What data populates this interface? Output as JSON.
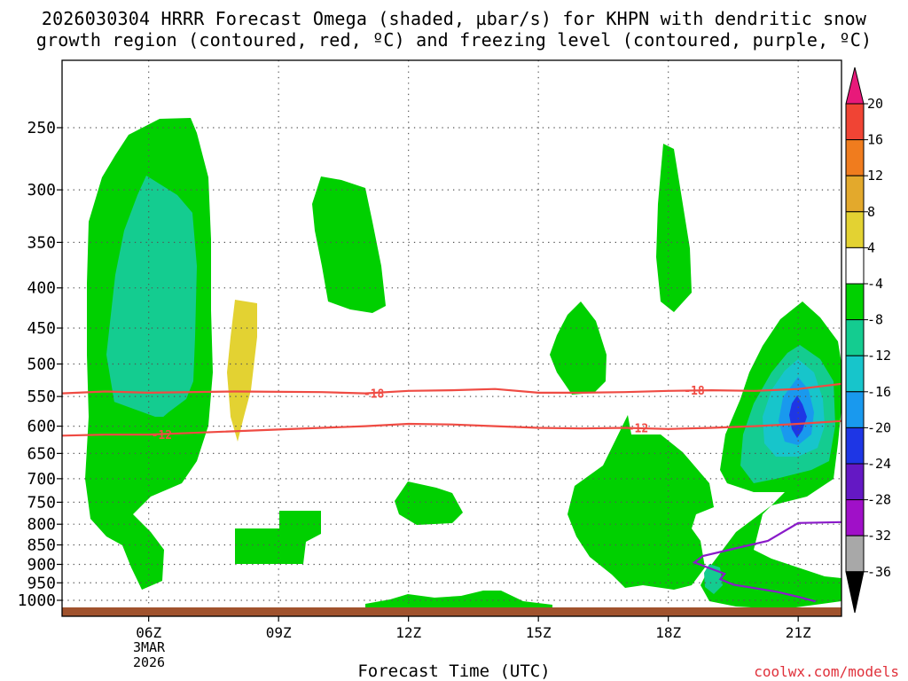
{
  "title_line1": "2026030304 HRRR Forecast Omega (shaded, µbar/s) for KHPN with dendritic snow",
  "title_line2": "growth region (contoured, red, ºC) and freezing level (contoured, purple, ºC)",
  "credit": "coolwx.com/models",
  "chart_data": {
    "type": "contour-time-height",
    "xlabel": "Forecast Time (UTC)",
    "x_ticks": [
      {
        "hour": 6,
        "label": "06Z",
        "sub1": "3MAR",
        "sub2": "2026"
      },
      {
        "hour": 9,
        "label": "09Z"
      },
      {
        "hour": 12,
        "label": "12Z"
      },
      {
        "hour": 15,
        "label": "15Z"
      },
      {
        "hour": 18,
        "label": "18Z"
      },
      {
        "hour": 21,
        "label": "21Z"
      }
    ],
    "x_range_hours": [
      4.0,
      22.0
    ],
    "y_axis_pressure_hPa": [
      250,
      300,
      350,
      400,
      450,
      500,
      550,
      600,
      650,
      700,
      750,
      800,
      850,
      900,
      950,
      1000
    ],
    "y_scale": "log-pressure (inverted)",
    "colorbar": {
      "levels": [
        20,
        16,
        12,
        8,
        4,
        -4,
        -8,
        -12,
        -16,
        -20,
        -24,
        -28,
        -32,
        -36
      ],
      "colors": [
        "#e8197a",
        "#f04434",
        "#f07c1e",
        "#e3a92c",
        "#e3d232",
        "#ffffff",
        "#00d000",
        "#14cc90",
        "#17c5cb",
        "#1999ee",
        "#1e36e5",
        "#6418c4",
        "#a010c8",
        "#a8a8a8",
        "#000000"
      ]
    },
    "contours": [
      {
        "kind": "dendritic growth",
        "color": "#ef4b43",
        "value": -18,
        "label": "-18",
        "points": [
          [
            4.0,
            545
          ],
          [
            5.0,
            542
          ],
          [
            6.0,
            544
          ],
          [
            8.0,
            542
          ],
          [
            10.0,
            543
          ],
          [
            11.0,
            545
          ],
          [
            12.0,
            541
          ],
          [
            13.0,
            540
          ],
          [
            14.0,
            538
          ],
          [
            15.0,
            544
          ],
          [
            16.0,
            544
          ],
          [
            17.0,
            543
          ],
          [
            18.0,
            541
          ],
          [
            19.0,
            540
          ],
          [
            20.0,
            541
          ],
          [
            21.0,
            538
          ],
          [
            22.0,
            530
          ]
        ]
      },
      {
        "kind": "dendritic growth",
        "color": "#ef4b43",
        "value": -12,
        "label": "-12",
        "points": [
          [
            4.0,
            617
          ],
          [
            5.0,
            615
          ],
          [
            6.0,
            615
          ],
          [
            7.0,
            612
          ],
          [
            9.0,
            606
          ],
          [
            11.0,
            600
          ],
          [
            12.0,
            596
          ],
          [
            13.0,
            597
          ],
          [
            14.0,
            600
          ],
          [
            15.0,
            603
          ],
          [
            16.0,
            604
          ],
          [
            17.0,
            603
          ],
          [
            18.0,
            605
          ],
          [
            19.0,
            603
          ],
          [
            20.0,
            600
          ],
          [
            21.0,
            596
          ],
          [
            22.0,
            591
          ]
        ]
      },
      {
        "kind": "freezing level",
        "color": "#8a1bc9",
        "value": 0,
        "points": [
          [
            22.0,
            795
          ],
          [
            21.0,
            797
          ],
          [
            20.3,
            840
          ],
          [
            19.5,
            860
          ],
          [
            18.8,
            878
          ],
          [
            18.6,
            895
          ],
          [
            19.0,
            912
          ],
          [
            19.3,
            925
          ],
          [
            19.2,
            940
          ],
          [
            19.5,
            955
          ],
          [
            20.5,
            975
          ],
          [
            21.0,
            990
          ],
          [
            21.4,
            1003
          ]
        ]
      }
    ],
    "shaded_regions": [
      {
        "name": "green-plume-0530-0700",
        "level": -4
      },
      {
        "name": "teal-core-0600",
        "level": -8
      },
      {
        "name": "yellow-ascent-0800",
        "level": 4
      },
      {
        "name": "green-0945-1120",
        "level": -4
      },
      {
        "name": "green-0845-1030-low",
        "level": -4
      },
      {
        "name": "green-1145-1245",
        "level": -4
      },
      {
        "name": "green-1100-1500-sfc",
        "level": -4
      },
      {
        "name": "green-1530-1640",
        "level": -4
      },
      {
        "name": "green-1550-1930-low",
        "level": -4
      },
      {
        "name": "green-1725-1830",
        "level": -4
      },
      {
        "name": "green-1900-2200",
        "level": -4
      },
      {
        "name": "teal-2030-2130",
        "level": -8
      },
      {
        "name": "cyan-2100",
        "level": -12
      },
      {
        "name": "blue-2100",
        "level": -16
      },
      {
        "name": "darkblue-2100",
        "level": -20
      }
    ],
    "ground_color": "#a0522d"
  }
}
